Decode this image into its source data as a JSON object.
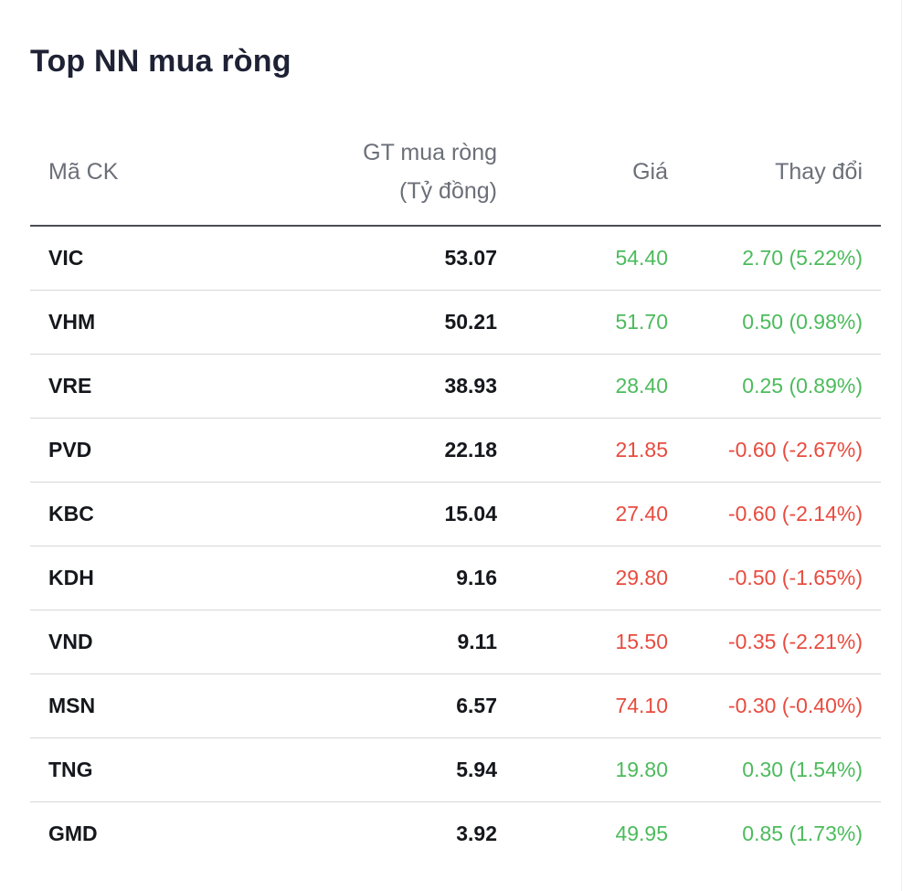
{
  "title": "Top NN mua ròng",
  "colors": {
    "up": "#4cbb5c",
    "down": "#e84b3f"
  },
  "columns": {
    "code": "Mã CK",
    "value_line1": "GT mua ròng",
    "value_line2": "(Tỷ đồng)",
    "price": "Giá",
    "change": "Thay đổi"
  },
  "rows": [
    {
      "code": "VIC",
      "value": "53.07",
      "price": "54.40",
      "change": "2.70 (5.22%)",
      "direction": "up"
    },
    {
      "code": "VHM",
      "value": "50.21",
      "price": "51.70",
      "change": "0.50 (0.98%)",
      "direction": "up"
    },
    {
      "code": "VRE",
      "value": "38.93",
      "price": "28.40",
      "change": "0.25 (0.89%)",
      "direction": "up"
    },
    {
      "code": "PVD",
      "value": "22.18",
      "price": "21.85",
      "change": "-0.60 (-2.67%)",
      "direction": "down"
    },
    {
      "code": "KBC",
      "value": "15.04",
      "price": "27.40",
      "change": "-0.60 (-2.14%)",
      "direction": "down"
    },
    {
      "code": "KDH",
      "value": "9.16",
      "price": "29.80",
      "change": "-0.50 (-1.65%)",
      "direction": "down"
    },
    {
      "code": "VND",
      "value": "9.11",
      "price": "15.50",
      "change": "-0.35 (-2.21%)",
      "direction": "down"
    },
    {
      "code": "MSN",
      "value": "6.57",
      "price": "74.10",
      "change": "-0.30 (-0.40%)",
      "direction": "down"
    },
    {
      "code": "TNG",
      "value": "5.94",
      "price": "19.80",
      "change": "0.30 (1.54%)",
      "direction": "up"
    },
    {
      "code": "GMD",
      "value": "3.92",
      "price": "49.95",
      "change": "0.85 (1.73%)",
      "direction": "up"
    }
  ]
}
